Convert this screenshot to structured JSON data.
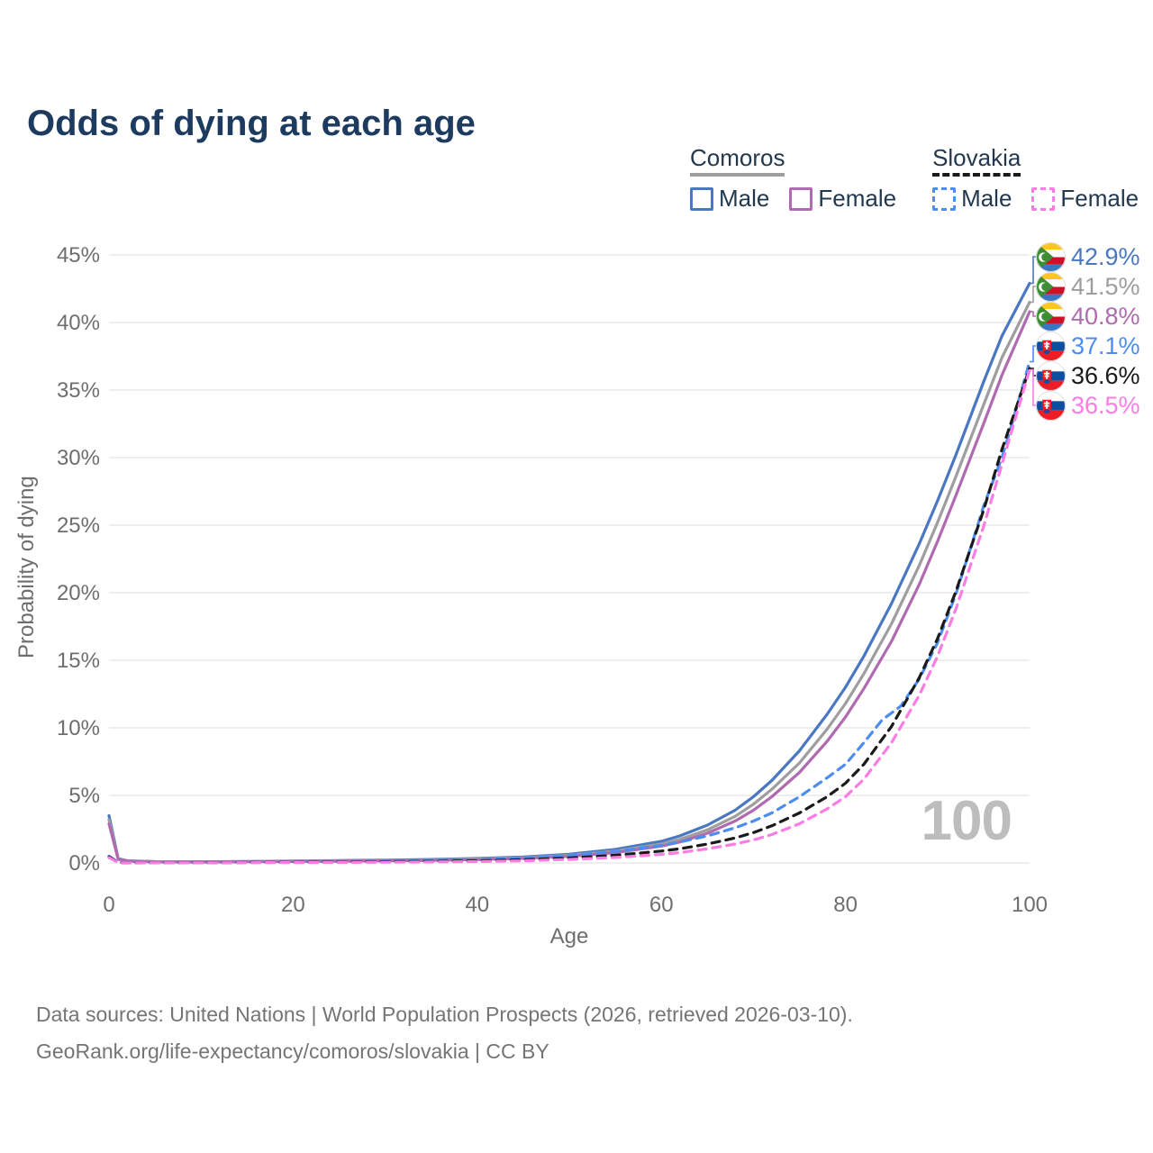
{
  "title": "Odds of dying at each age",
  "legend": {
    "groups": [
      {
        "label": "Comoros",
        "underline_style": "solid",
        "underline_color": "#9e9e9e",
        "items": [
          {
            "label": "Male",
            "color": "#4a77c2",
            "dash": false
          },
          {
            "label": "Female",
            "color": "#b06ab0",
            "dash": false
          }
        ]
      },
      {
        "label": "Slovakia",
        "underline_style": "dashed",
        "underline_color": "#1a1a1a",
        "items": [
          {
            "label": "Male",
            "color": "#4d8cf0",
            "dash": true
          },
          {
            "label": "Female",
            "color": "#fb7ce3",
            "dash": true
          }
        ]
      }
    ]
  },
  "watermark": "100",
  "footer": {
    "line1": "Data sources: United Nations | World Population Prospects (2026, retrieved 2026-03-10).",
    "line2": "GeoRank.org/life-expectancy/comoros/slovakia | CC BY"
  },
  "end_labels": [
    {
      "value": "42.9%",
      "color": "#4a77c2",
      "flag": "comoros"
    },
    {
      "value": "41.5%",
      "color": "#9e9e9e",
      "flag": "comoros"
    },
    {
      "value": "40.8%",
      "color": "#b06ab0",
      "flag": "comoros"
    },
    {
      "value": "37.1%",
      "color": "#4d8cf0",
      "flag": "slovakia"
    },
    {
      "value": "36.6%",
      "color": "#1a1a1a",
      "flag": "slovakia"
    },
    {
      "value": "36.5%",
      "color": "#fb7ce3",
      "flag": "slovakia"
    }
  ],
  "chart_data": {
    "type": "line",
    "title": "Odds of dying at each age",
    "xlabel": "Age",
    "ylabel": "Probability of dying",
    "x_range": [
      0,
      100
    ],
    "y_range": [
      0,
      45
    ],
    "x_ticks": [
      0,
      20,
      40,
      60,
      80,
      100
    ],
    "y_ticks": [
      0,
      5,
      10,
      15,
      20,
      25,
      30,
      35,
      40,
      45
    ],
    "y_tick_suffix": "%",
    "grid": true,
    "legend_position": "top-right",
    "series": [
      {
        "name": "Comoros Male",
        "country": "Comoros",
        "sex": "Male",
        "style": "solid",
        "color": "#4a77c2",
        "end_label": "42.9%",
        "points": [
          [
            0,
            3.5
          ],
          [
            1,
            0.32
          ],
          [
            2,
            0.16
          ],
          [
            5,
            0.1
          ],
          [
            10,
            0.09
          ],
          [
            15,
            0.11
          ],
          [
            20,
            0.15
          ],
          [
            25,
            0.18
          ],
          [
            30,
            0.21
          ],
          [
            35,
            0.26
          ],
          [
            40,
            0.33
          ],
          [
            45,
            0.45
          ],
          [
            50,
            0.65
          ],
          [
            55,
            1.0
          ],
          [
            60,
            1.6
          ],
          [
            62,
            2.0
          ],
          [
            65,
            2.8
          ],
          [
            68,
            3.9
          ],
          [
            70,
            4.9
          ],
          [
            72,
            6.1
          ],
          [
            75,
            8.3
          ],
          [
            78,
            11.0
          ],
          [
            80,
            13.0
          ],
          [
            82,
            15.3
          ],
          [
            85,
            19.2
          ],
          [
            88,
            23.6
          ],
          [
            90,
            26.8
          ],
          [
            92,
            30.2
          ],
          [
            95,
            35.6
          ],
          [
            97,
            39.0
          ],
          [
            100,
            42.9
          ]
        ]
      },
      {
        "name": "Comoros Both sexes",
        "country": "Comoros",
        "sex": "Both",
        "style": "solid",
        "color": "#9e9e9e",
        "end_label": "41.5%",
        "points": [
          [
            0,
            3.2
          ],
          [
            1,
            0.3
          ],
          [
            2,
            0.14
          ],
          [
            5,
            0.09
          ],
          [
            10,
            0.08
          ],
          [
            15,
            0.1
          ],
          [
            20,
            0.13
          ],
          [
            25,
            0.16
          ],
          [
            30,
            0.18
          ],
          [
            35,
            0.22
          ],
          [
            40,
            0.29
          ],
          [
            45,
            0.39
          ],
          [
            50,
            0.57
          ],
          [
            55,
            0.88
          ],
          [
            60,
            1.4
          ],
          [
            62,
            1.75
          ],
          [
            65,
            2.45
          ],
          [
            68,
            3.45
          ],
          [
            70,
            4.35
          ],
          [
            72,
            5.45
          ],
          [
            75,
            7.4
          ],
          [
            78,
            9.9
          ],
          [
            80,
            11.8
          ],
          [
            82,
            14.0
          ],
          [
            85,
            17.7
          ],
          [
            88,
            22.0
          ],
          [
            90,
            25.2
          ],
          [
            92,
            28.6
          ],
          [
            95,
            33.9
          ],
          [
            97,
            37.4
          ],
          [
            100,
            41.5
          ]
        ]
      },
      {
        "name": "Comoros Female",
        "country": "Comoros",
        "sex": "Female",
        "style": "solid",
        "color": "#b06ab0",
        "end_label": "40.8%",
        "points": [
          [
            0,
            2.9
          ],
          [
            1,
            0.27
          ],
          [
            2,
            0.13
          ],
          [
            5,
            0.08
          ],
          [
            10,
            0.07
          ],
          [
            15,
            0.09
          ],
          [
            20,
            0.11
          ],
          [
            25,
            0.13
          ],
          [
            30,
            0.16
          ],
          [
            35,
            0.19
          ],
          [
            40,
            0.25
          ],
          [
            45,
            0.34
          ],
          [
            50,
            0.49
          ],
          [
            55,
            0.77
          ],
          [
            60,
            1.25
          ],
          [
            62,
            1.55
          ],
          [
            65,
            2.2
          ],
          [
            68,
            3.1
          ],
          [
            70,
            3.9
          ],
          [
            72,
            4.9
          ],
          [
            75,
            6.7
          ],
          [
            78,
            9.0
          ],
          [
            80,
            10.8
          ],
          [
            82,
            12.9
          ],
          [
            85,
            16.4
          ],
          [
            88,
            20.6
          ],
          [
            90,
            23.8
          ],
          [
            92,
            27.2
          ],
          [
            95,
            32.5
          ],
          [
            97,
            36.1
          ],
          [
            100,
            40.8
          ]
        ]
      },
      {
        "name": "Slovakia Male",
        "country": "Slovakia",
        "sex": "Male",
        "style": "dashed",
        "color": "#4d8cf0",
        "end_label": "37.1%",
        "points": [
          [
            0,
            0.5
          ],
          [
            1,
            0.04
          ],
          [
            2,
            0.02
          ],
          [
            5,
            0.015
          ],
          [
            10,
            0.015
          ],
          [
            15,
            0.04
          ],
          [
            20,
            0.08
          ],
          [
            25,
            0.1
          ],
          [
            30,
            0.13
          ],
          [
            35,
            0.17
          ],
          [
            40,
            0.24
          ],
          [
            45,
            0.36
          ],
          [
            50,
            0.55
          ],
          [
            55,
            0.85
          ],
          [
            60,
            1.3
          ],
          [
            62,
            1.55
          ],
          [
            65,
            2.0
          ],
          [
            68,
            2.6
          ],
          [
            70,
            3.1
          ],
          [
            72,
            3.7
          ],
          [
            75,
            4.9
          ],
          [
            78,
            6.3
          ],
          [
            80,
            7.3
          ],
          [
            82,
            8.9
          ],
          [
            84,
            10.6
          ],
          [
            86,
            11.6
          ],
          [
            88,
            13.6
          ],
          [
            90,
            16.3
          ],
          [
            92,
            19.9
          ],
          [
            94,
            24.2
          ],
          [
            95,
            26.4
          ],
          [
            96,
            28.2
          ],
          [
            97,
            30.0
          ],
          [
            98,
            32.3
          ],
          [
            100,
            37.1
          ]
        ]
      },
      {
        "name": "Slovakia Both sexes",
        "country": "Slovakia",
        "sex": "Both",
        "style": "dashed",
        "color": "#1a1a1a",
        "end_label": "36.6%",
        "points": [
          [
            0,
            0.45
          ],
          [
            1,
            0.03
          ],
          [
            2,
            0.015
          ],
          [
            5,
            0.01
          ],
          [
            10,
            0.01
          ],
          [
            15,
            0.03
          ],
          [
            20,
            0.05
          ],
          [
            25,
            0.07
          ],
          [
            30,
            0.09
          ],
          [
            35,
            0.12
          ],
          [
            40,
            0.16
          ],
          [
            45,
            0.24
          ],
          [
            50,
            0.37
          ],
          [
            55,
            0.57
          ],
          [
            60,
            0.88
          ],
          [
            62,
            1.05
          ],
          [
            65,
            1.4
          ],
          [
            68,
            1.85
          ],
          [
            70,
            2.25
          ],
          [
            72,
            2.75
          ],
          [
            75,
            3.7
          ],
          [
            78,
            4.9
          ],
          [
            80,
            5.9
          ],
          [
            82,
            7.3
          ],
          [
            85,
            10.1
          ],
          [
            88,
            13.7
          ],
          [
            90,
            16.6
          ],
          [
            92,
            20.1
          ],
          [
            95,
            26.1
          ],
          [
            97,
            30.6
          ],
          [
            100,
            36.6
          ]
        ]
      },
      {
        "name": "Slovakia Female",
        "country": "Slovakia",
        "sex": "Female",
        "style": "dashed",
        "color": "#fb7ce3",
        "end_label": "36.5%",
        "points": [
          [
            0,
            0.4
          ],
          [
            1,
            0.025
          ],
          [
            2,
            0.012
          ],
          [
            5,
            0.008
          ],
          [
            10,
            0.008
          ],
          [
            15,
            0.02
          ],
          [
            20,
            0.03
          ],
          [
            25,
            0.04
          ],
          [
            30,
            0.055
          ],
          [
            35,
            0.075
          ],
          [
            40,
            0.1
          ],
          [
            45,
            0.16
          ],
          [
            50,
            0.26
          ],
          [
            55,
            0.41
          ],
          [
            60,
            0.63
          ],
          [
            62,
            0.77
          ],
          [
            65,
            1.05
          ],
          [
            68,
            1.4
          ],
          [
            70,
            1.7
          ],
          [
            72,
            2.1
          ],
          [
            75,
            2.9
          ],
          [
            78,
            4.0
          ],
          [
            80,
            4.9
          ],
          [
            82,
            6.2
          ],
          [
            85,
            8.9
          ],
          [
            88,
            12.4
          ],
          [
            90,
            15.3
          ],
          [
            92,
            18.8
          ],
          [
            95,
            24.9
          ],
          [
            97,
            29.5
          ],
          [
            100,
            36.5
          ]
        ]
      }
    ]
  }
}
